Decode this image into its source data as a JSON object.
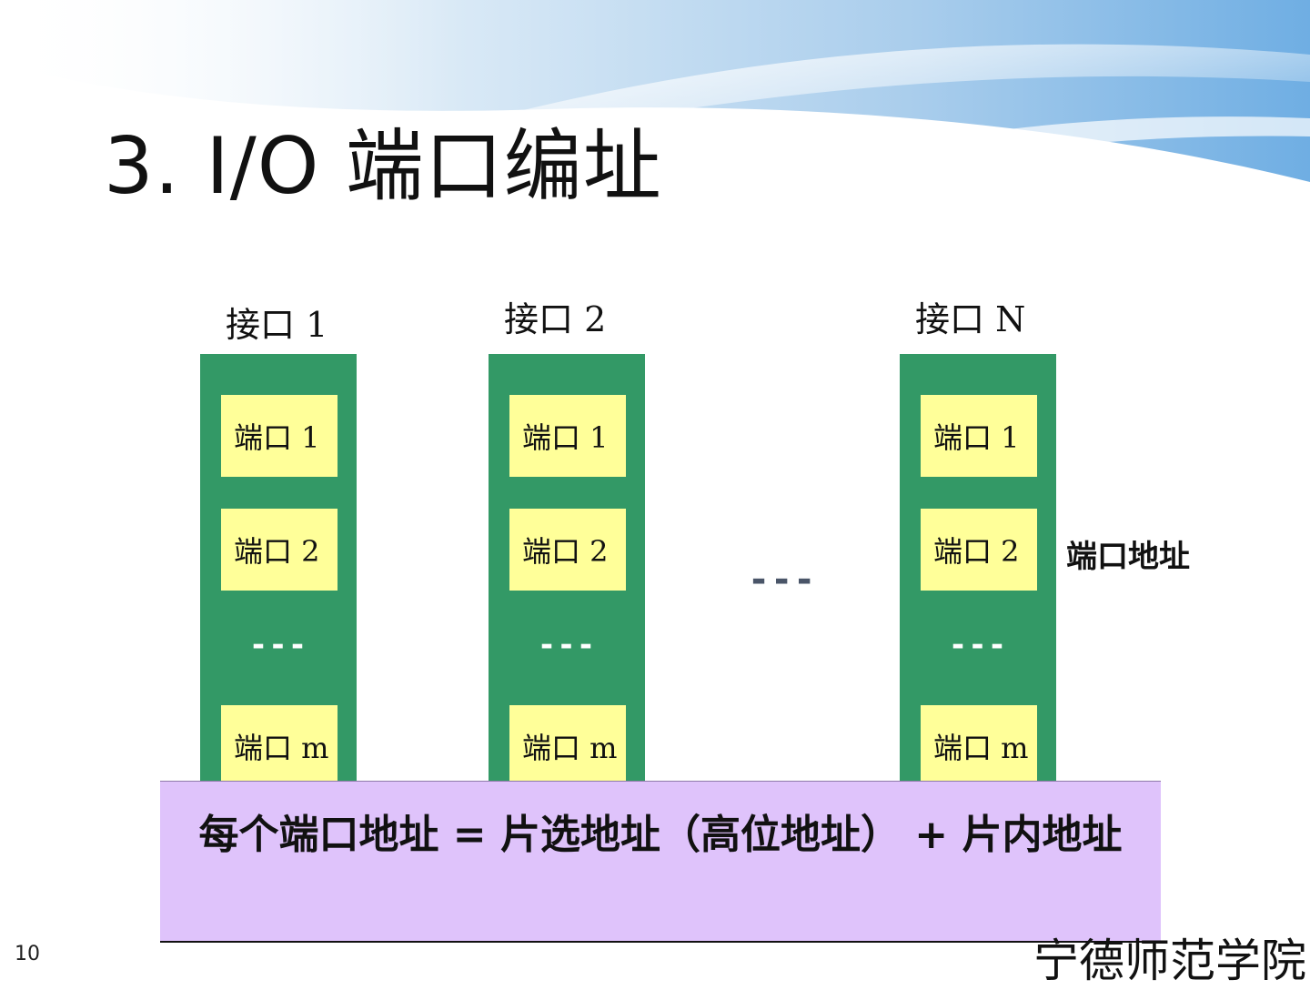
{
  "slide": {
    "title": "3. I/O 端口编址",
    "page_number": "10",
    "footer_brand": "宁德师范学院"
  },
  "interfaces": [
    {
      "label": "接口 1",
      "ports": [
        "端口 1",
        "端口 2"
      ],
      "dots": "---",
      "last_port": "端口 m"
    },
    {
      "label": "接口 2",
      "ports": [
        "端口 1",
        "端口 2"
      ],
      "dots": "---",
      "last_port": "端口 m"
    },
    {
      "label": "接口 N",
      "ports": [
        "端口 1",
        "端口 2"
      ],
      "dots": "---",
      "last_port": "端口 m"
    }
  ],
  "between_interfaces_dots": "---",
  "port_address_label": "端口地址",
  "formula": "每个端口地址 = 片选地址（高位地址） + 片内地址",
  "colors": {
    "interface_column": "#339966",
    "port_box": "#ffff99",
    "formula_box": "#dfc3fb"
  }
}
